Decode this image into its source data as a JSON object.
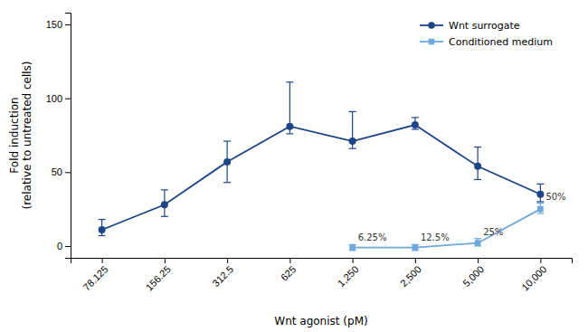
{
  "chart_data": {
    "type": "line",
    "xlabel": "Wnt agonist (pM)",
    "ylabel": "Fold induction\n(relative to untreated cells)",
    "categories": [
      "78.125",
      "156.25",
      "312.5",
      "625",
      "1,250",
      "2,500",
      "5,000",
      "10,000"
    ],
    "series": [
      {
        "name": "Wnt surrogate",
        "color": "#1c4587",
        "marker": "circle",
        "line_style": "solid",
        "values": [
          11,
          28,
          57,
          81,
          71,
          82,
          54,
          35
        ],
        "yerr_upper": [
          7,
          10,
          14,
          30,
          20,
          5,
          13,
          7
        ],
        "yerr_lower": [
          4,
          8,
          14,
          5,
          5,
          3,
          9,
          5
        ]
      },
      {
        "name": "Conditioned medium",
        "color": "#6fa8dc",
        "marker": "square",
        "line_style": "solid",
        "values": [
          null,
          null,
          null,
          null,
          -1,
          -1,
          2,
          25
        ],
        "yerr_upper": [
          null,
          null,
          null,
          null,
          2,
          2,
          3,
          4
        ],
        "yerr_lower": [
          null,
          null,
          null,
          null,
          2,
          2,
          2,
          3
        ]
      }
    ],
    "annotations": [
      {
        "text": "6.25%",
        "x": "1,250"
      },
      {
        "text": "12.5%",
        "x": "2,500"
      },
      {
        "text": "25%",
        "x": "5,000"
      },
      {
        "text": "50%",
        "x": "10,000"
      }
    ],
    "ylim": [
      -8,
      158
    ],
    "yticks": [
      0,
      50,
      100,
      150
    ],
    "grid": false,
    "legend": "upper right"
  }
}
